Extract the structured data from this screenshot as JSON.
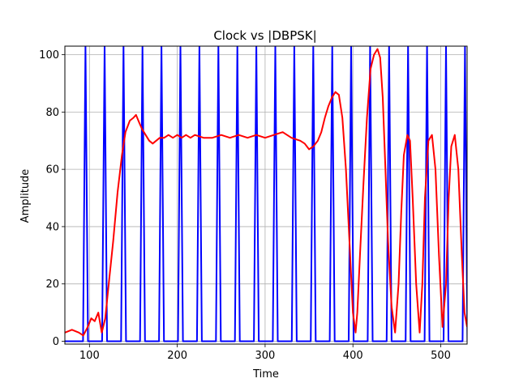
{
  "chart_data": {
    "type": "line",
    "title": "Clock vs |DBPSK|",
    "xlabel": "Time",
    "ylabel": "Amplitude",
    "xlim": [
      72,
      530
    ],
    "ylim": [
      -1,
      103
    ],
    "grid": true,
    "x_ticks": [
      100,
      200,
      300,
      400,
      500
    ],
    "y_ticks": [
      0,
      20,
      40,
      60,
      80,
      100
    ],
    "series": [
      {
        "color": "#0000ff",
        "description": "clock square wave, amplitude 0 to 103, period about 21.6 time units",
        "low": 0,
        "high": 103,
        "period": 21.6,
        "peak_times": [
          95.5,
          117.2,
          138.8,
          160.4,
          182.0,
          203.6,
          225.2,
          246.8,
          268.4,
          290.0,
          311.6,
          333.2,
          354.8,
          376.4,
          398.0,
          419.6,
          441.2,
          462.8,
          484.4,
          506.0,
          527.6
        ]
      },
      {
        "color": "#ff0000",
        "description": "|DBPSK| envelope",
        "x": [
          72,
          80,
          88,
          93,
          98,
          102,
          106,
          110,
          114,
          118,
          122,
          127,
          132,
          137,
          141,
          146,
          150,
          153,
          157,
          160,
          164,
          168,
          172,
          176,
          180,
          185,
          190,
          195,
          200,
          205,
          210,
          215,
          220,
          230,
          240,
          250,
          260,
          270,
          280,
          290,
          300,
          310,
          320,
          330,
          340,
          345,
          350,
          355,
          360,
          364,
          368,
          372,
          376,
          380,
          384,
          388,
          392,
          396,
          400,
          403,
          405,
          408,
          412,
          416,
          420,
          424,
          428,
          431,
          434,
          437,
          440,
          444,
          448,
          452,
          455,
          458,
          462,
          465,
          468,
          472,
          476,
          479,
          482,
          486,
          490,
          494,
          498,
          502,
          506,
          509,
          512,
          516,
          520,
          524,
          527,
          530
        ],
        "y": [
          3,
          4,
          3,
          2,
          5,
          8,
          7,
          10,
          3,
          8,
          20,
          35,
          52,
          65,
          73,
          77,
          78,
          79,
          76,
          74,
          72,
          70,
          69,
          70,
          71,
          71,
          72,
          71,
          72,
          71,
          72,
          71,
          72,
          71,
          71,
          72,
          71,
          72,
          71,
          72,
          71,
          72,
          73,
          71,
          70,
          69,
          67,
          68,
          70,
          73,
          78,
          82,
          85,
          87,
          86,
          78,
          60,
          35,
          10,
          3,
          10,
          30,
          55,
          78,
          95,
          100,
          102,
          99,
          85,
          60,
          35,
          12,
          3,
          20,
          45,
          65,
          72,
          70,
          50,
          20,
          3,
          20,
          50,
          70,
          72,
          60,
          30,
          5,
          20,
          50,
          68,
          72,
          60,
          30,
          10,
          5
        ]
      }
    ]
  }
}
